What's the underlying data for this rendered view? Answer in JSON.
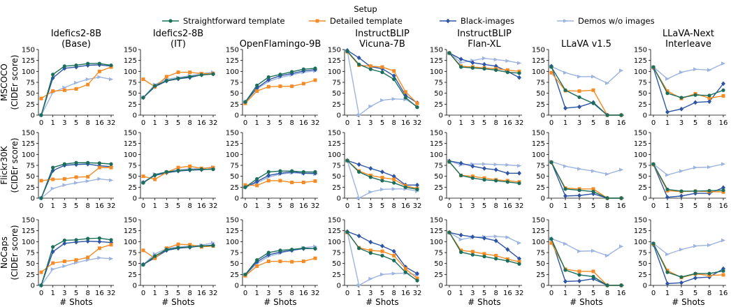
{
  "legend": {
    "title": "Setup",
    "entries": [
      {
        "name": "Straightforward template",
        "color": "#1b6e5a",
        "marker": "circle"
      },
      {
        "name": "Detailed template",
        "color": "#f48b24",
        "marker": "square"
      },
      {
        "name": "Black-images",
        "color": "#2e55a5",
        "marker": "diamond"
      },
      {
        "name": "Demos w/o images",
        "color": "#9db4e0",
        "marker": "triangle"
      }
    ]
  },
  "columns": [
    {
      "title": [
        "Idefics2-8B",
        "(Base)"
      ]
    },
    {
      "title": [
        "Idefics2-8B",
        "(IT)"
      ]
    },
    {
      "title": [
        "OpenFlamingo-9B"
      ]
    },
    {
      "title": [
        "InstructBLIP",
        "Vicuna-7B"
      ]
    },
    {
      "title": [
        "InstructBLIP",
        "Flan-XL"
      ]
    },
    {
      "title": [
        "LLaVA v1.5"
      ]
    },
    {
      "title": [
        "LLaVA-Next",
        "Interleave"
      ]
    }
  ],
  "rows": [
    {
      "ylabel": [
        "MSCOCO",
        "(CIDEr score)"
      ]
    },
    {
      "ylabel": [
        "Flickr30K",
        "(CIDEr score)"
      ]
    },
    {
      "ylabel": [
        "NoCaps",
        "(CIDEr score)"
      ]
    }
  ],
  "xlabel": "# Shots",
  "chart_data": {
    "type": "line",
    "ylim": [
      0,
      150
    ],
    "yticks": [
      0,
      25,
      50,
      75,
      100,
      125,
      150
    ],
    "ticks_long": [
      "0",
      "1",
      "3",
      "5",
      "8",
      "16",
      "32"
    ],
    "ticks_short": [
      "0",
      "1",
      "3",
      "5",
      "8",
      "16"
    ],
    "columns_long": [
      0,
      1,
      2,
      3,
      4
    ],
    "series_order": [
      "Straightforward template",
      "Detailed template",
      "Black-images",
      "Demos w/o images"
    ],
    "panels": [
      [
        {
          "Straightforward template": [
            0,
            93,
            112,
            114,
            118,
            118,
            114
          ],
          "Detailed template": [
            38,
            55,
            57,
            60,
            70,
            100,
            110
          ],
          "Black-images": [
            0,
            85,
            107,
            110,
            114,
            115,
            112
          ],
          "Demos w/o images": [
            0,
            52,
            63,
            74,
            82,
            87,
            82
          ]
        },
        {
          "Straightforward template": [
            40,
            67,
            79,
            84,
            88,
            92,
            94
          ],
          "Detailed template": [
            82,
            65,
            88,
            98,
            98,
            95,
            95
          ],
          "Black-images": [
            40,
            65,
            78,
            83,
            86,
            92,
            94
          ],
          "Demos w/o images": [
            40,
            70,
            82,
            86,
            90,
            95,
            98
          ]
        },
        {
          "Straightforward template": [
            30,
            68,
            87,
            93,
            99,
            105,
            107
          ],
          "Detailed template": [
            27,
            55,
            65,
            66,
            66,
            72,
            80
          ],
          "Black-images": [
            30,
            62,
            81,
            90,
            95,
            101,
            104
          ],
          "Demos w/o images": [
            30,
            60,
            77,
            86,
            92,
            98,
            101
          ]
        },
        {
          "Straightforward template": [
            146,
            116,
            105,
            98,
            82,
            40,
            18
          ],
          "Detailed template": [
            145,
            114,
            112,
            110,
            101,
            53,
            27
          ],
          "Black-images": [
            148,
            131,
            111,
            106,
            90,
            45,
            28
          ],
          "Demos w/o images": [
            147,
            0,
            20,
            34,
            37,
            36,
            20
          ]
        },
        {
          "Straightforward template": [
            142,
            110,
            108,
            106,
            103,
            98,
            96
          ],
          "Detailed template": [
            142,
            112,
            110,
            108,
            106,
            103,
            100
          ],
          "Black-images": [
            142,
            128,
            120,
            116,
            112,
            100,
            86
          ],
          "Demos w/o images": [
            142,
            120,
            125,
            130,
            127,
            124,
            119
          ]
        },
        {
          "Straightforward template": [
            110,
            57,
            41,
            27,
            0,
            0
          ],
          "Detailed template": [
            97,
            56,
            55,
            57,
            0,
            0
          ],
          "Black-images": [
            112,
            16,
            19,
            29,
            0,
            0
          ],
          "Demos w/o images": [
            111,
            97,
            88,
            88,
            73,
            102
          ]
        },
        {
          "Straightforward template": [
            110,
            50,
            40,
            46,
            45,
            57
          ],
          "Detailed template": [
            109,
            55,
            38,
            49,
            39,
            44
          ],
          "Black-images": [
            108,
            7,
            14,
            29,
            31,
            72
          ],
          "Demos w/o images": [
            110,
            83,
            98,
            105,
            103,
            118
          ]
        }
      ],
      [
        {
          "Straightforward template": [
            0,
            70,
            78,
            81,
            81,
            80,
            78
          ],
          "Detailed template": [
            40,
            43,
            44,
            48,
            49,
            70,
            70
          ],
          "Black-images": [
            0,
            63,
            75,
            77,
            78,
            74,
            72
          ],
          "Demos w/o images": [
            0,
            22,
            30,
            35,
            39,
            44,
            41
          ]
        },
        {
          "Straightforward template": [
            35,
            53,
            60,
            63,
            65,
            66,
            66
          ],
          "Detailed template": [
            50,
            43,
            59,
            70,
            73,
            68,
            70
          ],
          "Black-images": [
            36,
            52,
            58,
            62,
            64,
            65,
            67
          ],
          "Demos w/o images": [
            36,
            55,
            60,
            65,
            67,
            68,
            71
          ]
        },
        {
          "Straightforward template": [
            25,
            44,
            60,
            62,
            62,
            60,
            60
          ],
          "Detailed template": [
            30,
            29,
            40,
            40,
            36,
            36,
            39
          ],
          "Black-images": [
            25,
            38,
            52,
            57,
            60,
            57,
            57
          ],
          "Demos w/o images": [
            25,
            35,
            48,
            55,
            58,
            57,
            55
          ]
        },
        {
          "Straightforward template": [
            86,
            60,
            48,
            40,
            35,
            25,
            20
          ],
          "Detailed template": [
            86,
            62,
            52,
            47,
            43,
            28,
            22
          ],
          "Black-images": [
            86,
            77,
            68,
            60,
            50,
            30,
            30
          ],
          "Demos w/o images": [
            86,
            0,
            14,
            20,
            21,
            21,
            16
          ]
        },
        {
          "Straightforward template": [
            83,
            52,
            46,
            42,
            40,
            37,
            34
          ],
          "Detailed template": [
            83,
            52,
            50,
            46,
            42,
            40,
            37
          ],
          "Black-images": [
            85,
            80,
            73,
            68,
            65,
            57,
            57
          ],
          "Demos w/o images": [
            85,
            76,
            78,
            78,
            77,
            76,
            74
          ]
        },
        {
          "Straightforward template": [
            82,
            21,
            18,
            15,
            0,
            0
          ],
          "Detailed template": [
            82,
            23,
            21,
            21,
            0,
            0
          ],
          "Black-images": [
            82,
            5,
            6,
            10,
            0,
            0
          ],
          "Demos w/o images": [
            84,
            73,
            67,
            62,
            55,
            65
          ]
        },
        {
          "Straightforward template": [
            78,
            20,
            16,
            16,
            17,
            18
          ],
          "Detailed template": [
            77,
            17,
            15,
            16,
            15,
            14
          ],
          "Black-images": [
            77,
            2,
            5,
            11,
            11,
            24
          ],
          "Demos w/o images": [
            78,
            53,
            62,
            70,
            71,
            78
          ]
        }
      ],
      [
        {
          "Straightforward template": [
            0,
            88,
            103,
            104,
            107,
            108,
            104
          ],
          "Detailed template": [
            30,
            51,
            55,
            58,
            64,
            85,
            93
          ],
          "Black-images": [
            0,
            77,
            96,
            99,
            101,
            100,
            98
          ],
          "Demos w/o images": [
            0,
            37,
            44,
            52,
            58,
            63,
            61
          ]
        },
        {
          "Straightforward template": [
            47,
            67,
            82,
            86,
            88,
            90,
            91
          ],
          "Detailed template": [
            80,
            62,
            85,
            94,
            93,
            88,
            90
          ],
          "Black-images": [
            48,
            63,
            80,
            85,
            87,
            90,
            92
          ],
          "Demos w/o images": [
            47,
            72,
            84,
            88,
            90,
            92,
            97
          ]
        },
        {
          "Straightforward template": [
            25,
            58,
            75,
            80,
            82,
            85,
            84
          ],
          "Detailed template": [
            22,
            44,
            55,
            55,
            54,
            55,
            62
          ],
          "Black-images": [
            24,
            54,
            70,
            76,
            80,
            84,
            84
          ],
          "Demos w/o images": [
            24,
            50,
            66,
            74,
            80,
            86,
            89
          ]
        },
        {
          "Straightforward template": [
            122,
            85,
            74,
            68,
            57,
            30,
            11
          ],
          "Detailed template": [
            121,
            86,
            80,
            78,
            68,
            38,
            16
          ],
          "Black-images": [
            123,
            113,
            99,
            90,
            78,
            42,
            27
          ],
          "Demos w/o images": [
            122,
            0,
            15,
            25,
            27,
            28,
            24
          ]
        },
        {
          "Straightforward template": [
            121,
            76,
            70,
            66,
            61,
            56,
            49
          ],
          "Detailed template": [
            121,
            80,
            77,
            72,
            68,
            60,
            54
          ],
          "Black-images": [
            121,
            115,
            111,
            108,
            102,
            82,
            61
          ],
          "Demos w/o images": [
            121,
            105,
            110,
            111,
            112,
            110,
            97
          ]
        },
        {
          "Straightforward template": [
            106,
            35,
            24,
            20,
            0,
            0
          ],
          "Detailed template": [
            97,
            37,
            32,
            32,
            0,
            0
          ],
          "Black-images": [
            106,
            9,
            10,
            15,
            0,
            0
          ],
          "Demos w/o images": [
            107,
            95,
            78,
            79,
            68,
            89
          ]
        },
        {
          "Straightforward template": [
            96,
            30,
            19,
            27,
            27,
            33
          ],
          "Detailed template": [
            95,
            34,
            18,
            26,
            23,
            24
          ],
          "Black-images": [
            93,
            4,
            6,
            17,
            19,
            38
          ],
          "Demos w/o images": [
            96,
            71,
            82,
            90,
            92,
            103
          ]
        }
      ]
    ]
  }
}
